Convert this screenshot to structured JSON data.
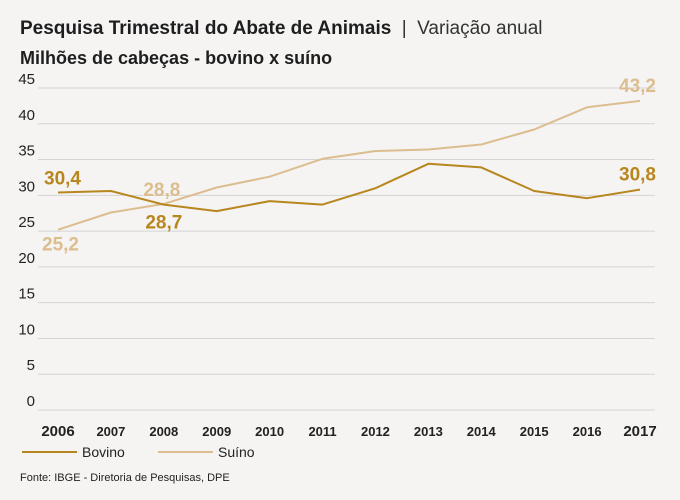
{
  "header": {
    "title_bold": "Pesquisa Trimestral do Abate de Animais",
    "title_sep": "|",
    "title_rest": "Variação anual",
    "subtitle": "Milhões de cabeças - bovino x suíno"
  },
  "source": "Fonte: IBGE - Diretoria de Pesquisas, DPE",
  "chart_data": {
    "type": "line",
    "title": "Pesquisa Trimestral do Abate de Animais | Variação anual",
    "subtitle": "Milhões de cabeças - bovino x suíno",
    "x": [
      "2006",
      "2007",
      "2008",
      "2009",
      "2010",
      "2011",
      "2012",
      "2013",
      "2014",
      "2015",
      "2016",
      "2017"
    ],
    "ylim": [
      0,
      45
    ],
    "yticks": [
      0,
      5,
      10,
      15,
      20,
      25,
      30,
      35,
      40,
      45
    ],
    "grid": true,
    "legend_position": "bottom-left",
    "series": [
      {
        "name": "Bovino",
        "color": "#b8861e",
        "values": [
          30.4,
          30.6,
          28.7,
          27.8,
          29.2,
          28.7,
          31.0,
          34.4,
          33.9,
          30.6,
          29.6,
          30.8
        ],
        "labels": [
          {
            "index": 0,
            "text": "30,4"
          },
          {
            "index": 2,
            "text": "28,7"
          },
          {
            "index": 11,
            "text": "30,8"
          }
        ]
      },
      {
        "name": "Suíno",
        "color": "#dcbd8f",
        "values": [
          25.2,
          27.6,
          28.8,
          31.1,
          32.6,
          35.1,
          36.2,
          36.4,
          37.1,
          39.2,
          42.3,
          43.2
        ],
        "labels": [
          {
            "index": 0,
            "text": "25,2"
          },
          {
            "index": 2,
            "text": "28,8"
          },
          {
            "index": 11,
            "text": "43,2"
          }
        ]
      }
    ]
  }
}
